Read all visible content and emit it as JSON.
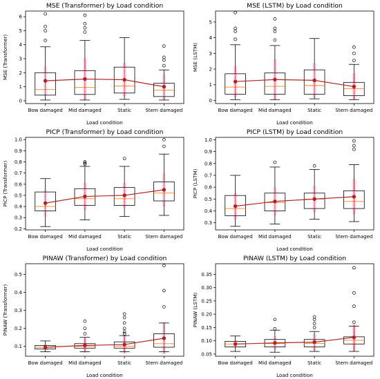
{
  "chart_data": [
    {
      "type": "box",
      "title": "MSE (Transformer) by Load condition",
      "xlabel": "Load condition",
      "ylabel": "MSE (Transformer)",
      "categories": [
        "Bow damaged",
        "Mid damaged",
        "Static",
        "Stern damaged"
      ],
      "ylim": [
        -0.2,
        6.4
      ],
      "yticks": [
        0,
        1,
        2,
        3,
        4,
        5,
        6
      ],
      "yticklabels": [
        "0",
        "1",
        "2",
        "3",
        "4",
        "5",
        "6"
      ],
      "boxes": [
        {
          "whislo": 0.05,
          "q1": 0.4,
          "median": 0.8,
          "q3": 2.0,
          "whishi": 3.85,
          "mean": 1.42,
          "sd": 1.05,
          "fliers": [
            4.3,
            5.0,
            5.3,
            6.2
          ]
        },
        {
          "whislo": 0.05,
          "q1": 0.45,
          "median": 0.95,
          "q3": 2.15,
          "whishi": 4.3,
          "mean": 1.55,
          "sd": 1.5,
          "fliers": [
            4.9,
            5.2,
            5.5,
            6.1
          ]
        },
        {
          "whislo": 0.1,
          "q1": 0.55,
          "median": 1.05,
          "q3": 2.4,
          "whishi": 4.5,
          "mean": 1.5,
          "sd": 1.2,
          "fliers": []
        },
        {
          "whislo": 0.05,
          "q1": 0.3,
          "median": 0.75,
          "q3": 1.25,
          "whishi": 2.2,
          "mean": 1.0,
          "sd": 0.9,
          "fliers": [
            2.5,
            2.9,
            3.1,
            3.9
          ]
        }
      ]
    },
    {
      "type": "box",
      "title": "MSE (LSTM) by Load condition",
      "xlabel": "Load condition",
      "ylabel": "MSE (LSTM)",
      "categories": [
        "Bow damaged",
        "Mid damaged",
        "Static",
        "Stern damaged"
      ],
      "ylim": [
        -0.2,
        5.7
      ],
      "yticks": [
        0,
        1,
        2,
        3,
        4,
        5
      ],
      "yticklabels": [
        "0",
        "1",
        "2",
        "3",
        "4",
        "5"
      ],
      "boxes": [
        {
          "whislo": 0.05,
          "q1": 0.4,
          "median": 0.85,
          "q3": 1.7,
          "whishi": 3.55,
          "mean": 1.2,
          "sd": 1.0,
          "fliers": [
            3.9,
            4.4,
            4.6,
            5.6
          ]
        },
        {
          "whislo": 0.05,
          "q1": 0.4,
          "median": 0.9,
          "q3": 1.75,
          "whishi": 3.5,
          "mean": 1.33,
          "sd": 1.3,
          "fliers": [
            3.85,
            4.4,
            4.6,
            5.2
          ]
        },
        {
          "whislo": 0.1,
          "q1": 0.4,
          "median": 0.95,
          "q3": 1.95,
          "whishi": 3.95,
          "mean": 1.28,
          "sd": 1.1,
          "fliers": []
        },
        {
          "whislo": 0.05,
          "q1": 0.3,
          "median": 0.75,
          "q3": 1.15,
          "whishi": 2.3,
          "mean": 0.88,
          "sd": 0.85,
          "fliers": [
            2.55,
            3.0,
            3.4
          ]
        }
      ]
    },
    {
      "type": "box",
      "title": "PICP (Transformer) by Load condition",
      "xlabel": "Load condition",
      "ylabel": "PICP (Transformer)",
      "categories": [
        "Bow damaged",
        "Mid damaged",
        "Static",
        "Stern damaged"
      ],
      "ylim": [
        0.19,
        1.02
      ],
      "yticks": [
        0.2,
        0.3,
        0.4,
        0.5,
        0.6,
        0.7,
        0.8,
        0.9,
        1.0
      ],
      "yticklabels": [
        "0.2",
        "0.3",
        "0.4",
        "0.5",
        "0.6",
        "0.7",
        "0.8",
        "0.9",
        "1.0"
      ],
      "boxes": [
        {
          "whislo": 0.22,
          "q1": 0.36,
          "median": 0.4,
          "q3": 0.53,
          "whishi": 0.65,
          "mean": 0.43,
          "sd": 0.12,
          "fliers": []
        },
        {
          "whislo": 0.28,
          "q1": 0.41,
          "median": 0.47,
          "q3": 0.56,
          "whishi": 0.76,
          "mean": 0.49,
          "sd": 0.12,
          "fliers": [
            0.78,
            0.79,
            0.8
          ]
        },
        {
          "whislo": 0.31,
          "q1": 0.41,
          "median": 0.47,
          "q3": 0.57,
          "whishi": 0.76,
          "mean": 0.5,
          "sd": 0.11,
          "fliers": [
            0.83
          ]
        },
        {
          "whislo": 0.32,
          "q1": 0.45,
          "median": 0.52,
          "q3": 0.62,
          "whishi": 0.87,
          "mean": 0.55,
          "sd": 0.15,
          "fliers": [
            0.94,
            1.0
          ]
        }
      ]
    },
    {
      "type": "box",
      "title": "PICP (LSTM) by Load condition",
      "xlabel": "Load condition",
      "ylabel": "PICP (LSTM)",
      "categories": [
        "Bow damaged",
        "Mid damaged",
        "Static",
        "Stern damaged"
      ],
      "ylim": [
        0.24,
        1.02
      ],
      "yticks": [
        0.3,
        0.4,
        0.5,
        0.6,
        0.7,
        0.8,
        0.9,
        1.0
      ],
      "yticklabels": [
        "0.3",
        "0.4",
        "0.5",
        "0.6",
        "0.7",
        "0.8",
        "0.9",
        "1.0"
      ],
      "boxes": [
        {
          "whislo": 0.27,
          "q1": 0.36,
          "median": 0.42,
          "q3": 0.53,
          "whishi": 0.7,
          "mean": 0.44,
          "sd": 0.11,
          "fliers": []
        },
        {
          "whislo": 0.29,
          "q1": 0.4,
          "median": 0.47,
          "q3": 0.55,
          "whishi": 0.77,
          "mean": 0.48,
          "sd": 0.12,
          "fliers": [
            0.81
          ]
        },
        {
          "whislo": 0.33,
          "q1": 0.42,
          "median": 0.5,
          "q3": 0.55,
          "whishi": 0.75,
          "mean": 0.5,
          "sd": 0.11,
          "fliers": [
            0.78
          ]
        },
        {
          "whislo": 0.31,
          "q1": 0.42,
          "median": 0.48,
          "q3": 0.57,
          "whishi": 0.79,
          "mean": 0.52,
          "sd": 0.15,
          "fliers": [
            0.92,
            0.95,
            0.99
          ]
        }
      ]
    },
    {
      "type": "box",
      "title": "PINAW (Transformer) by Load condition",
      "xlabel": "Load condition",
      "ylabel": "PINAW (Transformer)",
      "categories": [
        "Bow damaged",
        "Mid damaged",
        "Static",
        "Stern damaged"
      ],
      "ylim": [
        0.045,
        0.56
      ],
      "yticks": [
        0.1,
        0.2,
        0.3,
        0.4,
        0.5
      ],
      "yticklabels": [
        "0.1",
        "0.2",
        "0.3",
        "0.4",
        "0.5"
      ],
      "boxes": [
        {
          "whislo": 0.07,
          "q1": 0.085,
          "median": 0.095,
          "q3": 0.105,
          "whishi": 0.13,
          "mean": 0.095,
          "sd": 0.02,
          "fliers": []
        },
        {
          "whislo": 0.07,
          "q1": 0.09,
          "median": 0.1,
          "q3": 0.115,
          "whishi": 0.15,
          "mean": 0.105,
          "sd": 0.04,
          "fliers": [
            0.17,
            0.2,
            0.24
          ]
        },
        {
          "whislo": 0.07,
          "q1": 0.09,
          "median": 0.1,
          "q3": 0.125,
          "whishi": 0.16,
          "mean": 0.11,
          "sd": 0.05,
          "fliers": [
            0.17,
            0.18,
            0.2,
            0.23,
            0.26,
            0.28
          ]
        },
        {
          "whislo": 0.07,
          "q1": 0.095,
          "median": 0.115,
          "q3": 0.17,
          "whishi": 0.23,
          "mean": 0.145,
          "sd": 0.09,
          "fliers": [
            0.32,
            0.41,
            0.55
          ]
        }
      ]
    },
    {
      "type": "box",
      "title": "PINAW (LSTM) by Load condition",
      "xlabel": "Load condition",
      "ylabel": "PINAW (LSTM)",
      "categories": [
        "Bow damaged",
        "Mid damaged",
        "Static",
        "Stern damaged"
      ],
      "ylim": [
        0.042,
        0.39
      ],
      "yticks": [
        0.05,
        0.1,
        0.15,
        0.2,
        0.25,
        0.3,
        0.35
      ],
      "yticklabels": [
        "0.05",
        "0.10",
        "0.15",
        "0.20",
        "0.25",
        "0.30",
        "0.35"
      ],
      "boxes": [
        {
          "whislo": 0.06,
          "q1": 0.077,
          "median": 0.088,
          "q3": 0.098,
          "whishi": 0.118,
          "mean": 0.088,
          "sd": 0.015,
          "fliers": []
        },
        {
          "whislo": 0.057,
          "q1": 0.077,
          "median": 0.09,
          "q3": 0.105,
          "whishi": 0.14,
          "mean": 0.092,
          "sd": 0.025,
          "fliers": [
            0.145,
            0.18
          ]
        },
        {
          "whislo": 0.06,
          "q1": 0.077,
          "median": 0.09,
          "q3": 0.105,
          "whishi": 0.135,
          "mean": 0.095,
          "sd": 0.03,
          "fliers": [
            0.15,
            0.165,
            0.18,
            0.19
          ]
        },
        {
          "whislo": 0.06,
          "q1": 0.088,
          "median": 0.102,
          "q3": 0.115,
          "whishi": 0.155,
          "mean": 0.113,
          "sd": 0.05,
          "fliers": [
            0.17,
            0.23,
            0.28,
            0.375
          ]
        }
      ]
    }
  ]
}
